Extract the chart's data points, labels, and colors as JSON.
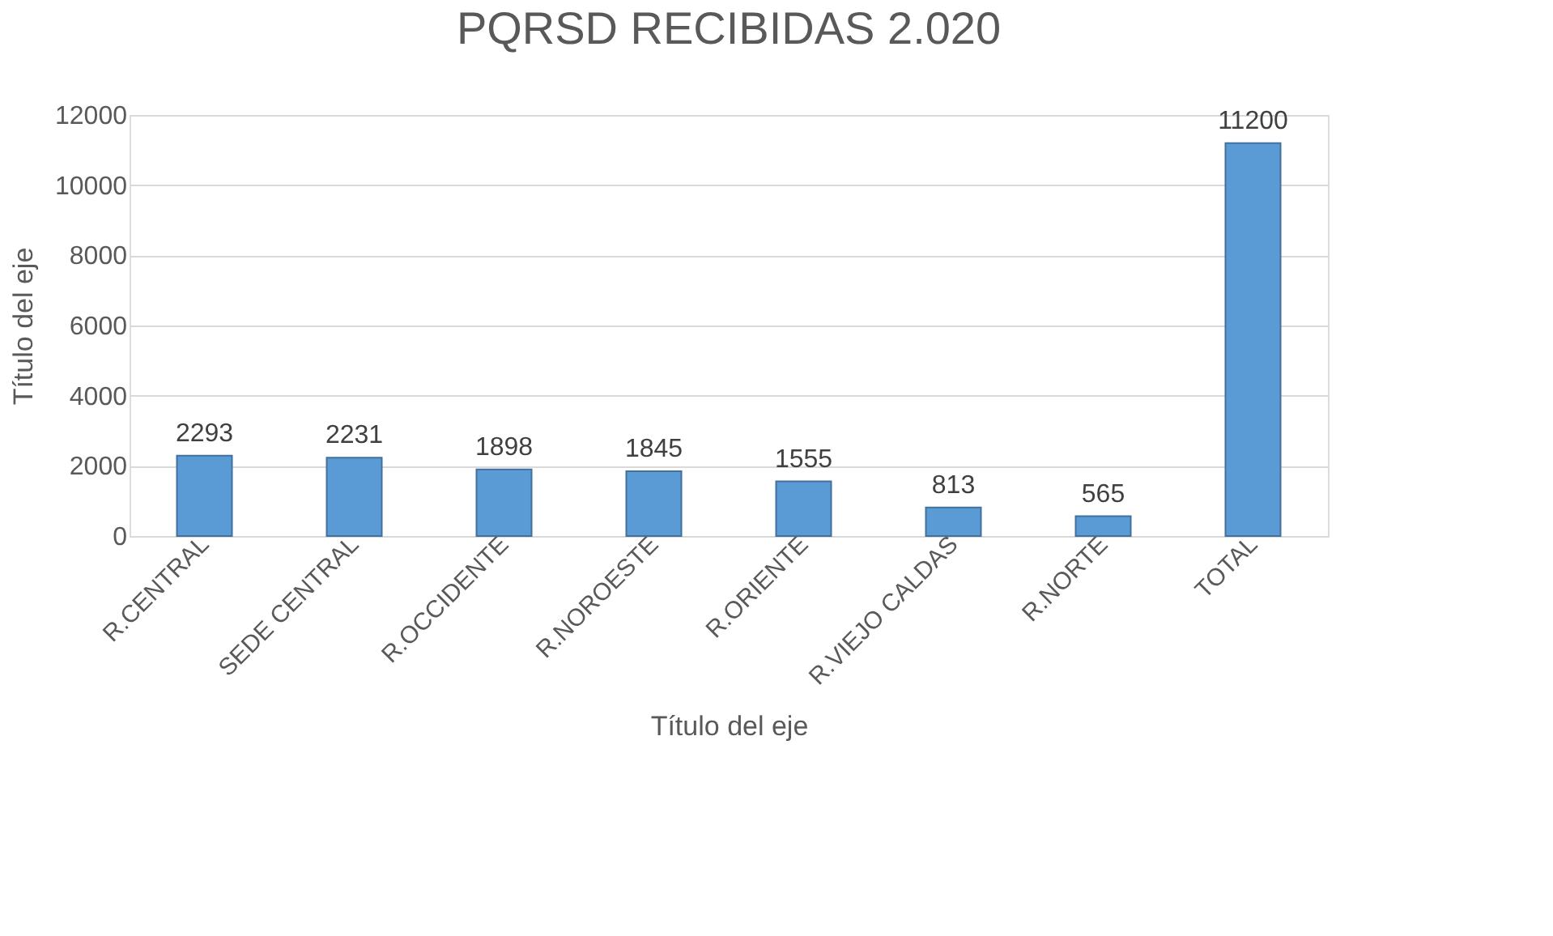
{
  "chart_data": {
    "type": "bar",
    "title": "PQRSD RECIBIDAS 2.020",
    "xlabel": "Título del eje",
    "ylabel": "Título del eje",
    "categories": [
      "R.CENTRAL",
      "SEDE CENTRAL",
      "R.OCCIDENTE",
      "R.NOROESTE",
      "R.ORIENTE",
      "R.VIEJO CALDAS",
      "R.NORTE",
      "TOTAL"
    ],
    "values": [
      2293,
      2231,
      1898,
      1845,
      1555,
      813,
      565,
      11200
    ],
    "color": "#5b9bd5",
    "ylim": [
      0,
      12000
    ],
    "yticks": [
      0,
      2000,
      4000,
      6000,
      8000,
      10000,
      12000
    ],
    "grid": "y",
    "data_labels": true
  }
}
